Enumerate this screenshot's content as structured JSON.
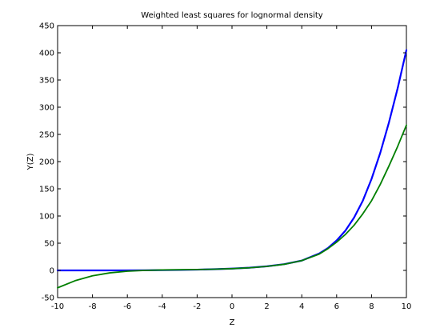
{
  "chart_data": {
    "type": "line",
    "title": "Weighted least squares for lognormal density",
    "xlabel": "Z",
    "ylabel": "Y(Z)",
    "xlim": [
      -10,
      10
    ],
    "ylim": [
      -50,
      450
    ],
    "xticks": [
      -10,
      -8,
      -6,
      -4,
      -2,
      0,
      2,
      4,
      6,
      8,
      10
    ],
    "yticks": [
      -50,
      0,
      50,
      100,
      150,
      200,
      250,
      300,
      350,
      400,
      450
    ],
    "grid": false,
    "series": [
      {
        "color": "#0000ff",
        "x": [
          -10,
          -8,
          -6,
          -5,
          -4,
          -3,
          -2,
          -1,
          0,
          1,
          2,
          3,
          4,
          5,
          5.5,
          6,
          6.5,
          7,
          7.5,
          8,
          8.5,
          9,
          9.5,
          10
        ],
        "y": [
          0,
          0,
          0.1,
          0.2,
          0.5,
          0.8,
          1.4,
          2.2,
          3.3,
          5,
          7.5,
          11.5,
          18,
          31,
          41,
          55,
          73,
          97,
          128,
          168,
          216,
          272,
          335,
          405
        ]
      },
      {
        "color": "#007f00",
        "x": [
          -10,
          -9,
          -8,
          -7,
          -6,
          -5,
          -4,
          -3,
          -2,
          -1,
          0,
          1,
          2,
          3,
          4,
          5,
          5.5,
          6,
          6.5,
          7,
          7.5,
          8,
          8.5,
          9,
          9.5,
          10
        ],
        "y": [
          -32,
          -19,
          -10,
          -4.5,
          -1.5,
          0,
          0.8,
          1.2,
          1.6,
          2.2,
          3.2,
          4.8,
          7.3,
          11.3,
          18,
          30,
          40,
          52,
          66,
          83,
          104,
          128,
          158,
          192,
          228,
          267
        ]
      }
    ]
  }
}
